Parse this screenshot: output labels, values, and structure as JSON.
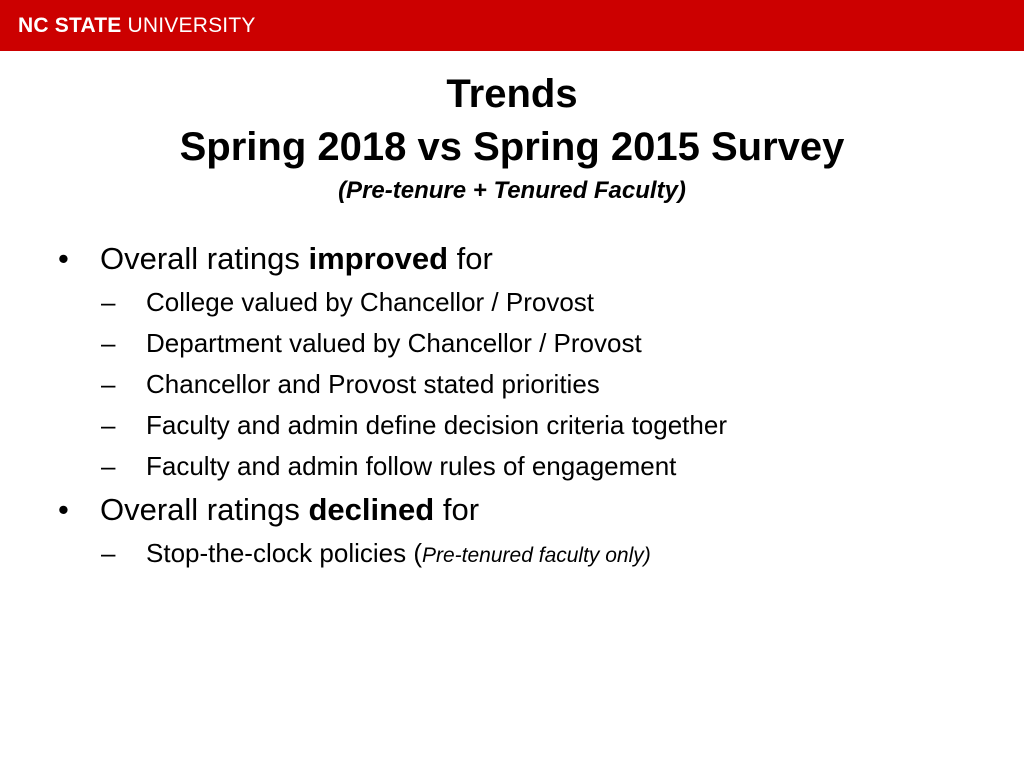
{
  "header": {
    "logo_strong": "NC STATE",
    "logo_light": "UNIVERSITY",
    "color": "#cc0000"
  },
  "title": {
    "line1": "Trends",
    "line2": "Spring 2018 vs Spring 2015 Survey",
    "subtitle": "(Pre-tenure + Tenured Faculty)"
  },
  "bullets": [
    {
      "marker": "•",
      "prefix": "Overall ratings ",
      "emphasis": "improved",
      "suffix": " for",
      "items": [
        {
          "marker": "–",
          "text": "College valued by Chancellor / Provost"
        },
        {
          "marker": "–",
          "text": "Department valued by Chancellor / Provost"
        },
        {
          "marker": "–",
          "text": "Chancellor and Provost stated priorities"
        },
        {
          "marker": "–",
          "text": "Faculty and admin define decision criteria together"
        },
        {
          "marker": "–",
          "text": "Faculty and admin follow rules of engagement"
        }
      ]
    },
    {
      "marker": "•",
      "prefix": "Overall ratings ",
      "emphasis": "declined",
      "suffix": " for",
      "items": [
        {
          "marker": "–",
          "text": "Stop-the-clock policies (",
          "note": "Pre-tenured faculty only)"
        }
      ]
    }
  ]
}
